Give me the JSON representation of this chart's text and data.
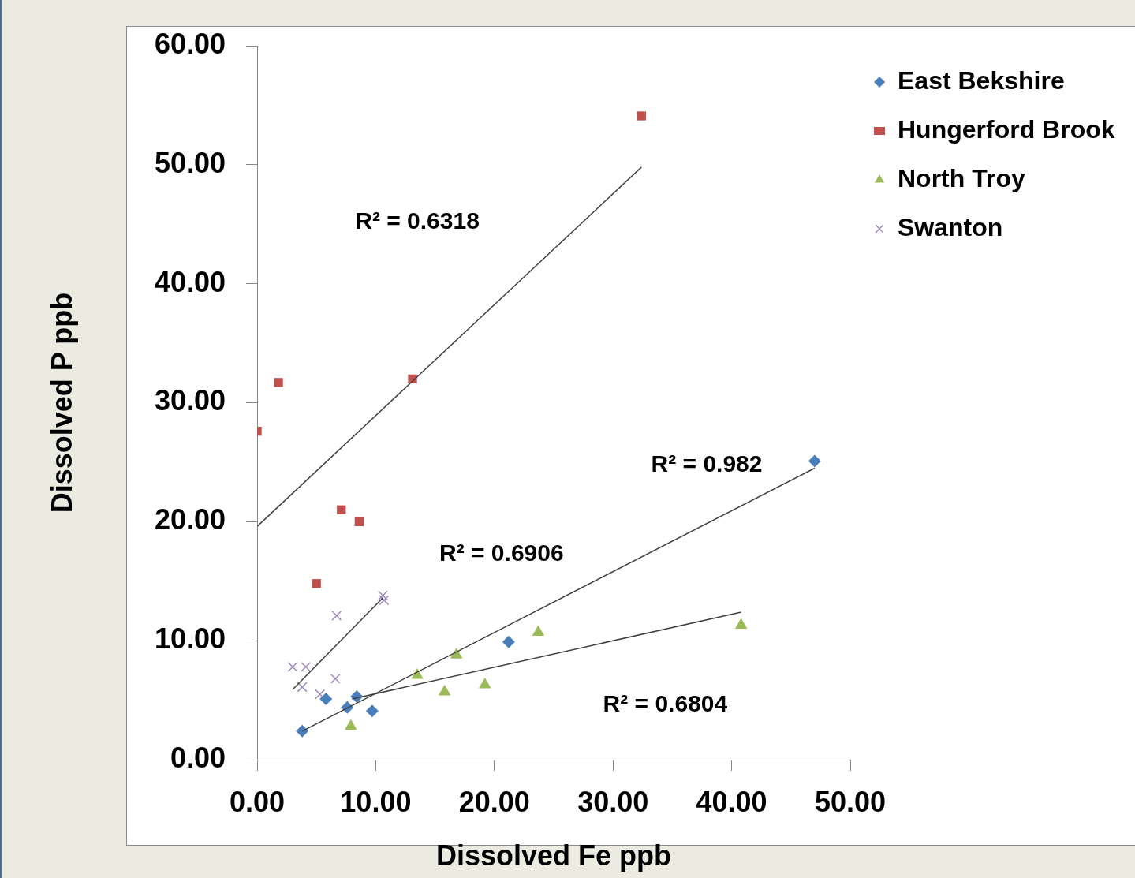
{
  "chart_data": {
    "type": "scatter",
    "xlabel": "Dissolved Fe ppb",
    "ylabel": "Dissolved P ppb",
    "xlim": [
      0,
      50
    ],
    "ylim": [
      0,
      60
    ],
    "xticks": [
      {
        "value": 0,
        "label": "0.00"
      },
      {
        "value": 10,
        "label": "10.00"
      },
      {
        "value": 20,
        "label": "20.00"
      },
      {
        "value": 30,
        "label": "30.00"
      },
      {
        "value": 40,
        "label": "40.00"
      },
      {
        "value": 50,
        "label": "50.00"
      }
    ],
    "yticks": [
      {
        "value": 0,
        "label": "0.00"
      },
      {
        "value": 10,
        "label": "10.00"
      },
      {
        "value": 20,
        "label": "20.00"
      },
      {
        "value": 30,
        "label": "30.00"
      },
      {
        "value": 40,
        "label": "40.00"
      },
      {
        "value": 50,
        "label": "50.00"
      },
      {
        "value": 60,
        "label": "60.00"
      }
    ],
    "grid": false,
    "legend": "right",
    "series": [
      {
        "name": "East Bekshire",
        "color": "#4a7ebb",
        "marker": "diamond",
        "x": [
          3.8,
          5.8,
          7.6,
          8.4,
          9.7,
          21.2,
          47.0
        ],
        "values": [
          2.4,
          5.1,
          4.4,
          5.3,
          4.1,
          9.9,
          25.1
        ]
      },
      {
        "name": "Hungerford Brook",
        "color": "#c0504d",
        "marker": "square",
        "x": [
          0.0,
          1.8,
          13.1,
          7.1,
          8.6,
          5.0,
          32.4
        ],
        "values": [
          27.6,
          31.7,
          32.0,
          21.0,
          20.0,
          14.8,
          54.1
        ]
      },
      {
        "name": "North Troy",
        "color": "#9bbb59",
        "marker": "triangle",
        "x": [
          7.9,
          13.5,
          16.8,
          15.8,
          19.2,
          23.7,
          40.8
        ],
        "values": [
          2.8,
          7.1,
          8.8,
          5.7,
          6.3,
          10.7,
          11.3
        ]
      },
      {
        "name": "Swanton",
        "color": "#9f8ac0",
        "marker": "cross",
        "x": [
          3.0,
          4.1,
          3.8,
          5.3,
          6.6,
          6.7,
          10.6,
          10.7
        ],
        "values": [
          7.8,
          7.8,
          6.1,
          5.5,
          6.8,
          12.1,
          13.8,
          13.4
        ]
      },
      {
        "type": "line",
        "color": "#404040",
        "marker": "none",
        "x": [
          0,
          32.4
        ],
        "values": [
          19.6,
          49.8
        ]
      },
      {
        "type": "line",
        "color": "#404040",
        "marker": "none",
        "x": [
          3.8,
          47.0
        ],
        "values": [
          2.4,
          24.5
        ]
      },
      {
        "type": "line",
        "color": "#404040",
        "marker": "none",
        "x": [
          8.0,
          40.8
        ],
        "values": [
          5.1,
          12.4
        ]
      },
      {
        "type": "line",
        "color": "#404040",
        "marker": "none",
        "x": [
          3.0,
          10.6
        ],
        "values": [
          5.9,
          13.6
        ]
      }
    ],
    "annotations": [
      "R² = 0.6318",
      "R² = 0.982",
      "R² = 0.6906",
      "R² = 0.6804"
    ]
  }
}
